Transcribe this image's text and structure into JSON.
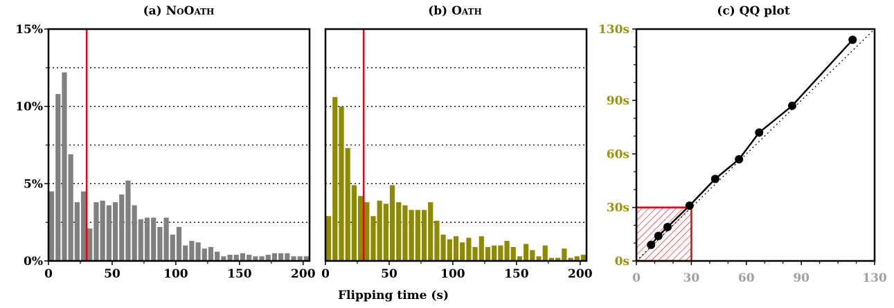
{
  "shared_xlabel": "Flipping time (s)",
  "colors": {
    "noOath": "#808080",
    "oath": "#8e8a00",
    "threshold": "#e8000b",
    "qq": "#000000",
    "oathAxis": "#9a9400",
    "qqXAxis": "#a0a0a0"
  },
  "chart_data": [
    {
      "type": "bar",
      "title_prefix": "(a) ",
      "title_main": "NoOath",
      "xlim": [
        0,
        205
      ],
      "ylim": [
        0,
        15
      ],
      "xticks": [
        0,
        50,
        100,
        150,
        200
      ],
      "yticks": [
        0,
        5,
        10,
        15
      ],
      "ytick_labels": [
        "0%",
        "5%",
        "10%",
        "15%"
      ],
      "grid_y": [
        2.5,
        5,
        7.5,
        10,
        12.5
      ],
      "bin_width": 5,
      "bin_starts": [
        0,
        5,
        10,
        15,
        20,
        25,
        30,
        35,
        40,
        45,
        50,
        55,
        60,
        65,
        70,
        75,
        80,
        85,
        90,
        95,
        100,
        105,
        110,
        115,
        120,
        125,
        130,
        135,
        140,
        145,
        150,
        155,
        160,
        165,
        170,
        175,
        180,
        185,
        190,
        195,
        200
      ],
      "values": [
        4.5,
        10.8,
        12.2,
        6.9,
        3.8,
        4.5,
        2.1,
        3.8,
        3.9,
        3.6,
        3.8,
        4.3,
        5.2,
        3.6,
        2.7,
        2.8,
        2.8,
        2.2,
        2.8,
        1.7,
        2.2,
        1.0,
        1.3,
        1.2,
        0.8,
        0.9,
        0.6,
        0.3,
        0.4,
        0.4,
        0.5,
        0.4,
        0.3,
        0.3,
        0.4,
        0.5,
        0.5,
        0.5,
        0.3,
        0.3,
        0.3
      ],
      "threshold_x": 30
    },
    {
      "type": "bar",
      "title_prefix": "(b) ",
      "title_main": "Oath",
      "xlim": [
        0,
        205
      ],
      "ylim": [
        0,
        15
      ],
      "xticks": [
        0,
        50,
        100,
        150,
        200
      ],
      "grid_y": [
        2.5,
        5,
        7.5,
        10,
        12.5
      ],
      "bin_width": 5,
      "bin_starts": [
        0,
        5,
        10,
        15,
        20,
        25,
        30,
        35,
        40,
        45,
        50,
        55,
        60,
        65,
        70,
        75,
        80,
        85,
        90,
        95,
        100,
        105,
        110,
        115,
        120,
        125,
        130,
        135,
        140,
        145,
        150,
        155,
        160,
        165,
        170,
        175,
        180,
        185,
        190,
        195,
        200
      ],
      "values": [
        2.9,
        10.6,
        10.0,
        7.3,
        4.9,
        4.2,
        3.8,
        2.9,
        3.9,
        3.7,
        4.9,
        3.8,
        3.6,
        3.3,
        3.3,
        3.3,
        3.8,
        2.6,
        1.7,
        1.4,
        1.6,
        1.2,
        1.5,
        0.9,
        1.6,
        0.9,
        1.0,
        1.0,
        1.3,
        0.9,
        0.3,
        1.1,
        0.7,
        0.3,
        1.0,
        0.2,
        0.2,
        0.8,
        0.2,
        0.3,
        0.4
      ],
      "threshold_x": 30
    },
    {
      "type": "line",
      "title": "(c) QQ plot",
      "xlim": [
        0,
        130
      ],
      "ylim": [
        0,
        130
      ],
      "xticks": [
        0,
        30,
        60,
        90,
        130
      ],
      "yticks": [
        0,
        30,
        60,
        90,
        130
      ],
      "ytick_labels": [
        "0s",
        "30s",
        "60s",
        "90s",
        "130s"
      ],
      "x": [
        8,
        12,
        17,
        29,
        43,
        56,
        67,
        85,
        118
      ],
      "y": [
        9,
        14,
        19,
        31,
        46,
        57,
        72,
        87,
        124
      ],
      "reference_line": "y=x",
      "highlight_box": [
        0,
        0,
        30,
        30
      ]
    }
  ]
}
